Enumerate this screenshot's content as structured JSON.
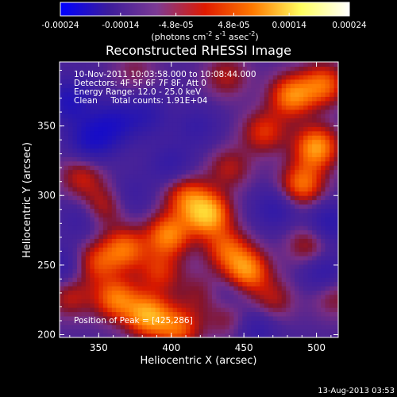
{
  "chart_data": {
    "type": "heatmap",
    "title": "Reconstructed RHESSI Image",
    "xlabel": "Heliocentric X (arcsec)",
    "ylabel": "Heliocentric Y (arcsec)",
    "xlim": [
      323,
      515
    ],
    "ylim": [
      198,
      396
    ],
    "xticks": [
      350,
      400,
      450,
      500
    ],
    "yticks": [
      200,
      250,
      300,
      350
    ],
    "colorbar": {
      "range": [
        -0.00024,
        0.00024
      ],
      "tick_values": [
        -0.00024,
        -0.00014,
        -4.8e-05,
        4.8e-05,
        0.00014,
        0.00024
      ],
      "tick_labels": [
        "-0.00024",
        "-0.00014",
        "-4.8e-05",
        "4.8e-05",
        "0.00014",
        "0.00024"
      ],
      "units_prefix": "(photons cm",
      "units_sup1": "-2",
      "units_mid1": " s",
      "units_sup2": "-1",
      "units_mid2": " asec",
      "units_sup3": "-2",
      "units_suffix": ")",
      "colors": [
        "#0000ff",
        "#3c1c9c",
        "#7c3a94",
        "#e01a00",
        "#ff7a00",
        "#ffff60",
        "#ffffff"
      ]
    },
    "annotations": [
      "10-Nov-2011 10:03:58.000 to 10:08:44.000",
      "Detectors: 4F 5F 6F 7F 8F, Att 0",
      "Energy Range: 12.0 - 25.0 keV",
      "Clean     Total counts: 1.91E+04"
    ],
    "peak_label": "Position of Peak = [425,286]",
    "peak": [
      425,
      286
    ],
    "sources": [
      {
        "x": 425,
        "y": 287,
        "amp": 1.0
      },
      {
        "x": 398,
        "y": 272,
        "amp": 0.8
      },
      {
        "x": 410,
        "y": 300,
        "amp": 0.6
      },
      {
        "x": 384,
        "y": 214,
        "amp": 0.9
      },
      {
        "x": 362,
        "y": 226,
        "amp": 0.75
      },
      {
        "x": 405,
        "y": 205,
        "amp": 0.65
      },
      {
        "x": 368,
        "y": 262,
        "amp": 0.7
      },
      {
        "x": 348,
        "y": 252,
        "amp": 0.55
      },
      {
        "x": 452,
        "y": 246,
        "amp": 0.85
      },
      {
        "x": 438,
        "y": 262,
        "amp": 0.6
      },
      {
        "x": 490,
        "y": 308,
        "amp": 0.75
      },
      {
        "x": 500,
        "y": 335,
        "amp": 0.9
      },
      {
        "x": 483,
        "y": 372,
        "amp": 0.8
      },
      {
        "x": 505,
        "y": 380,
        "amp": 0.7
      },
      {
        "x": 464,
        "y": 346,
        "amp": 0.55
      },
      {
        "x": 440,
        "y": 320,
        "amp": 0.4
      },
      {
        "x": 338,
        "y": 314,
        "amp": 0.45
      },
      {
        "x": 352,
        "y": 292,
        "amp": 0.5
      },
      {
        "x": 495,
        "y": 265,
        "amp": 0.45
      },
      {
        "x": 470,
        "y": 225,
        "amp": 0.4
      },
      {
        "x": 330,
        "y": 228,
        "amp": 0.45
      },
      {
        "x": 392,
        "y": 245,
        "amp": 0.5
      },
      {
        "x": 420,
        "y": 230,
        "amp": 0.3
      },
      {
        "x": 440,
        "y": 212,
        "amp": 0.35
      },
      {
        "x": 512,
        "y": 228,
        "amp": 0.35
      },
      {
        "x": 375,
        "y": 390,
        "amp": 0.25
      },
      {
        "x": 438,
        "y": 386,
        "amp": 0.4
      },
      {
        "x": 330,
        "y": 368,
        "amp": -0.55
      },
      {
        "x": 360,
        "y": 352,
        "amp": -0.5
      },
      {
        "x": 345,
        "y": 340,
        "amp": -0.6
      },
      {
        "x": 382,
        "y": 358,
        "amp": -0.35
      },
      {
        "x": 400,
        "y": 322,
        "amp": -0.3
      },
      {
        "x": 472,
        "y": 291,
        "amp": -0.35
      },
      {
        "x": 508,
        "y": 280,
        "amp": -0.45
      },
      {
        "x": 505,
        "y": 245,
        "amp": -0.4
      },
      {
        "x": 458,
        "y": 206,
        "amp": -0.35
      },
      {
        "x": 440,
        "y": 230,
        "amp": -0.25
      },
      {
        "x": 418,
        "y": 350,
        "amp": -0.25
      },
      {
        "x": 340,
        "y": 285,
        "amp": -0.3
      },
      {
        "x": 326,
        "y": 248,
        "amp": -0.35
      },
      {
        "x": 372,
        "y": 300,
        "amp": -0.2
      }
    ]
  },
  "footer": {
    "date_stamp": "13-Aug-2013 03:53"
  }
}
